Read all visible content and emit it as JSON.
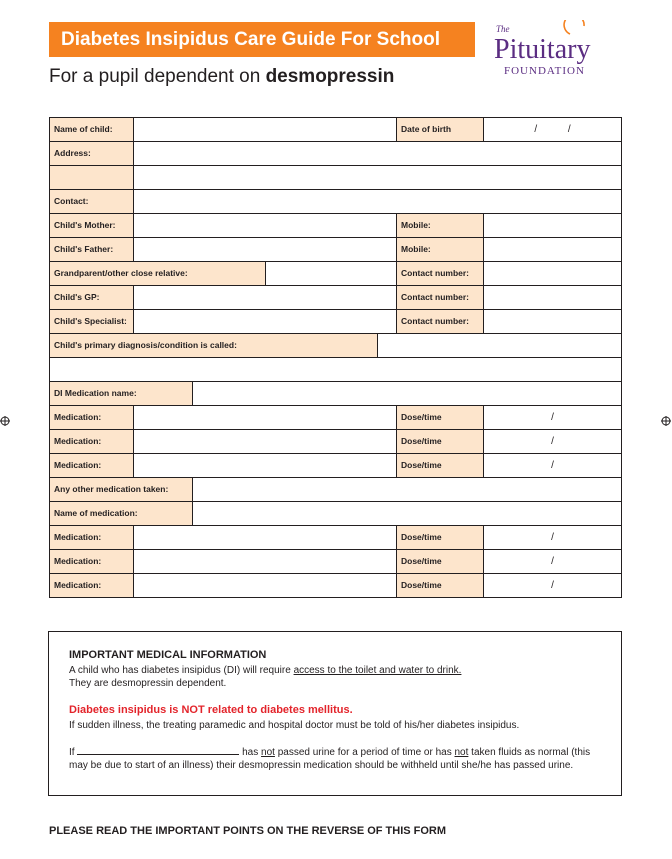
{
  "header": {
    "title": "Diabetes Insipidus Care Guide For School",
    "subtitle_prefix": "For a pupil dependent on",
    "subtitle_emphasis": "desmopressin"
  },
  "logo": {
    "the": "The",
    "name": "Pituitary",
    "foundation": "FOUNDATION"
  },
  "form": {
    "rows": [
      {
        "label": "Name of child:",
        "label2": "Date of birth",
        "marks": [
          "/",
          "/"
        ]
      },
      {
        "label": "Address:"
      },
      {},
      {
        "label": "Contact:"
      },
      {
        "label": "Child's Mother:",
        "label2": "Mobile:"
      },
      {
        "label": "Child's Father:",
        "label2": "Mobile:"
      },
      {
        "label": "Grandparent/other close relative:",
        "label2": "Contact number:"
      },
      {
        "label": "Child's GP:",
        "label2": "Contact number:"
      },
      {
        "label": "Child's Specialist:",
        "label2": "Contact number:"
      },
      {
        "label": "Child's primary diagnosis/condition is called:"
      },
      {},
      {
        "label": "DI Medication name:"
      },
      {
        "label": "Medication:",
        "label2": "Dose/time",
        "marks": [
          "/"
        ]
      },
      {
        "label": "Medication:",
        "label2": "Dose/time",
        "marks": [
          "/"
        ]
      },
      {
        "label": "Medication:",
        "label2": "Dose/time",
        "marks": [
          "/"
        ]
      },
      {
        "label": "Any other medication taken:"
      },
      {
        "label": "Name of medication:"
      },
      {
        "label": "Medication:",
        "label2": "Dose/time",
        "marks": [
          "/"
        ]
      },
      {
        "label": "Medication:",
        "label2": "Dose/time",
        "marks": [
          "/"
        ]
      },
      {
        "label": "Medication:",
        "label2": "Dose/time",
        "marks": [
          "/"
        ]
      }
    ]
  },
  "info": {
    "heading": "IMPORTANT MEDICAL INFORMATION",
    "p1_start": "A child who has diabetes insipidus (DI) will require",
    "p1_underlined": "access to the toilet and water to drink.",
    "p1_end": "They are desmopressin dependent.",
    "warning": "Diabetes insipidus is NOT related to diabetes mellitus.",
    "p2": "If sudden illness, the treating paramedic and hospital doctor must be told of his/her diabetes insipidus.",
    "p3_a": "If",
    "p3_b": "has",
    "p3_not1": "not",
    "p3_c": "passed urine for a period of time or has",
    "p3_not2": "not",
    "p3_d": "taken fluids as normal (this may be due to start of an illness) their desmopressin medication should be withheld until she/he has passed urine."
  },
  "footer": "PLEASE READ THE IMPORTANT POINTS ON THE REVERSE OF THIS FORM"
}
